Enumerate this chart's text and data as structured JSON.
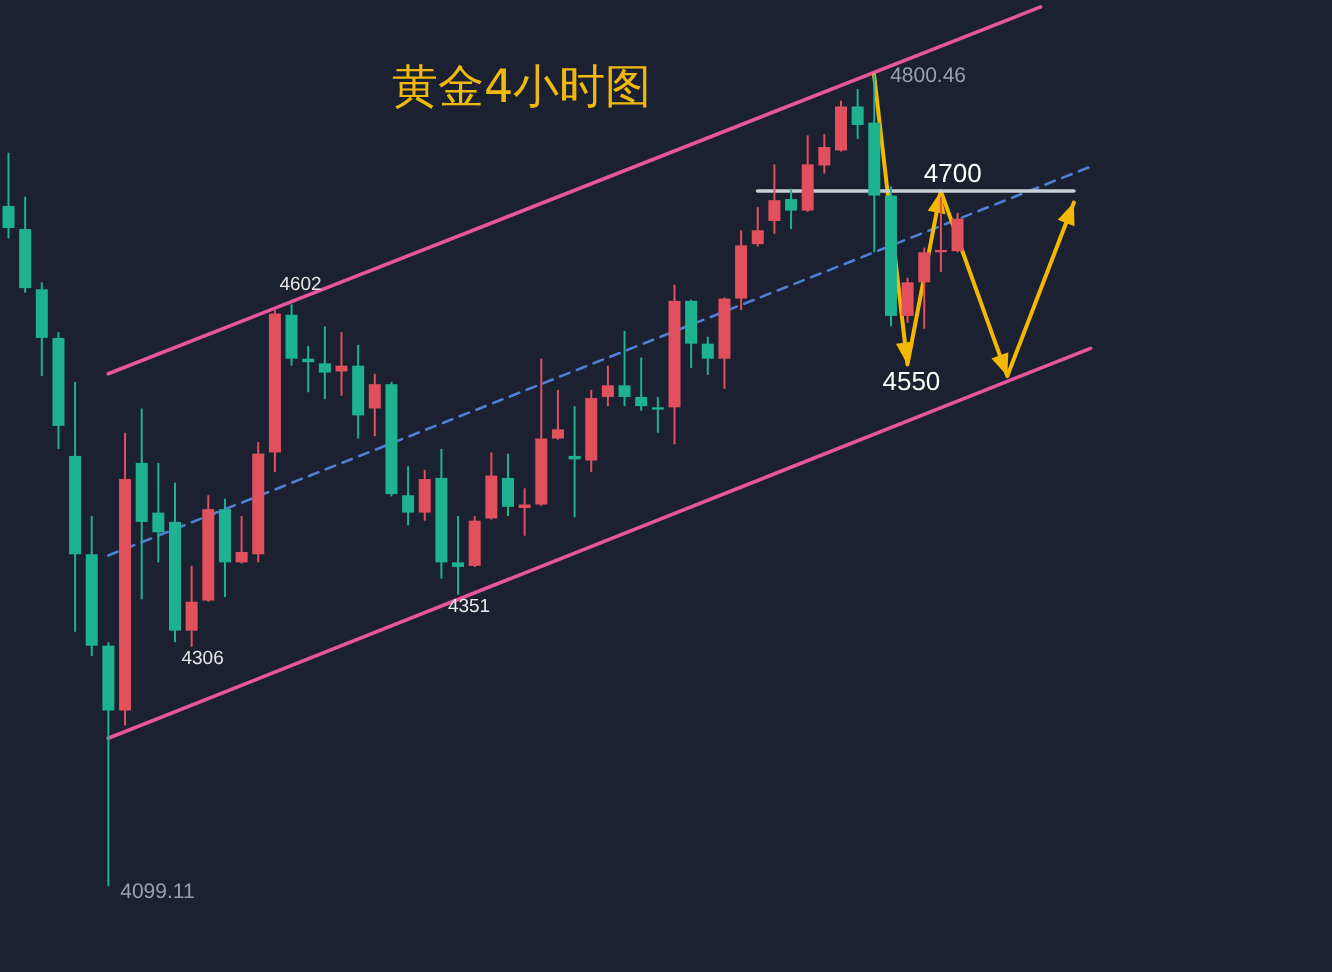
{
  "chart_data": {
    "type": "candlestick",
    "title": "黄金4小时图",
    "categories": [
      null,
      null,
      null,
      null,
      null,
      null,
      null,
      null,
      null,
      null,
      null,
      null,
      null,
      null,
      null,
      null,
      null,
      null,
      null,
      null,
      null,
      null,
      null,
      null,
      null,
      null,
      null,
      null,
      null,
      null,
      null,
      null,
      null,
      null,
      null,
      null,
      null,
      null,
      null,
      null,
      null,
      null,
      null,
      null,
      null,
      null,
      null,
      null,
      null,
      null,
      null,
      null,
      null,
      null,
      null,
      null,
      null,
      null,
      null,
      null,
      null,
      null,
      null,
      null,
      null,
      null,
      null,
      null,
      null,
      null,
      null,
      null,
      null,
      null,
      null,
      null,
      null,
      null,
      null,
      null
    ],
    "ohlc": [
      [
        4687,
        4733,
        4659,
        4668
      ],
      [
        4667,
        4695,
        4612,
        4616
      ],
      [
        4615,
        4621,
        4540,
        4573
      ],
      [
        4573,
        4578,
        4477,
        4497
      ],
      [
        4471,
        4535,
        4319,
        4386
      ],
      [
        4386,
        4419,
        4298,
        4307
      ],
      [
        4307,
        4310,
        4099.11,
        4251
      ],
      [
        4251,
        4491,
        4238,
        4451
      ],
      [
        4465,
        4512,
        4347,
        4414
      ],
      [
        4422,
        4465,
        4379,
        4405
      ],
      [
        4414,
        4448,
        4310,
        4320
      ],
      [
        4320,
        4376,
        4306,
        4345
      ],
      [
        4346,
        4437,
        4345,
        4425
      ],
      [
        4425,
        4434,
        4349,
        4379
      ],
      [
        4379,
        4419,
        4378,
        4388
      ],
      [
        4386,
        4483,
        4379,
        4473
      ],
      [
        4474,
        4597,
        4457,
        4594
      ],
      [
        4593,
        4602,
        4549,
        4555
      ],
      [
        4555,
        4566,
        4526,
        4552
      ],
      [
        4551,
        4583,
        4520,
        4543
      ],
      [
        4544,
        4578,
        4523,
        4549
      ],
      [
        4549,
        4567,
        4486,
        4506
      ],
      [
        4512,
        4542,
        4488,
        4533
      ],
      [
        4533,
        4535,
        4436,
        4438
      ],
      [
        4437,
        4462,
        4411,
        4422
      ],
      [
        4422,
        4459,
        4415,
        4451
      ],
      [
        4452,
        4477,
        4365,
        4379
      ],
      [
        4379,
        4419,
        4351,
        4375
      ],
      [
        4376,
        4419,
        4375,
        4415
      ],
      [
        4417,
        4474,
        4416,
        4454
      ],
      [
        4452,
        4473,
        4419,
        4427
      ],
      [
        4426,
        4443,
        4402,
        4429
      ],
      [
        4429,
        4555,
        4428,
        4486
      ],
      [
        4486,
        4528,
        4485,
        4494
      ],
      [
        4471,
        4514,
        4418,
        4468
      ],
      [
        4467,
        4528,
        4457,
        4521
      ],
      [
        4522,
        4549,
        4514,
        4532
      ],
      [
        4532,
        4579,
        4514,
        4522
      ],
      [
        4522,
        4556,
        4510,
        4514
      ],
      [
        4513,
        4522,
        4491,
        4511
      ],
      [
        4513,
        4619,
        4481,
        4605
      ],
      [
        4605,
        4606,
        4547,
        4568
      ],
      [
        4568,
        4574,
        4541,
        4555
      ],
      [
        4555,
        4608,
        4529,
        4607
      ],
      [
        4607,
        4666,
        4597,
        4653
      ],
      [
        4654,
        4686,
        4652,
        4666
      ],
      [
        4674,
        4723,
        4663,
        4692
      ],
      [
        4693,
        4702,
        4667,
        4683
      ],
      [
        4683,
        4748,
        4682,
        4723
      ],
      [
        4722,
        4749,
        4715,
        4738
      ],
      [
        4735,
        4778,
        4734,
        4773
      ],
      [
        4773,
        4788,
        4745,
        4757
      ],
      [
        4759,
        4800.46,
        4647,
        4696
      ],
      [
        4696,
        4704,
        4583,
        4592
      ],
      [
        4592,
        4625,
        4586,
        4621
      ],
      [
        4621,
        4651,
        4581,
        4647
      ],
      [
        4647,
        4695,
        4630,
        4649
      ],
      [
        4648,
        4681,
        4647,
        4676
      ],
      null,
      null,
      null,
      null,
      null,
      null,
      null,
      null,
      null,
      null,
      null,
      null,
      null,
      null,
      null,
      null,
      null,
      null,
      null,
      null,
      null,
      null
    ],
    "colors": [
      "#1db391",
      "#1db391",
      "#1db391",
      "#1db391",
      "#1db391",
      "#1db391",
      "#1db391",
      "#e2505e",
      "#1db391",
      "#1db391",
      "#1db391",
      "#e2505e",
      "#e2505e",
      "#1db391",
      "#e2505e",
      "#e2505e",
      "#e2505e",
      "#1db391",
      "#1db391",
      "#1db391",
      "#e2505e",
      "#1db391",
      "#e2505e",
      "#1db391",
      "#1db391",
      "#e2505e",
      "#1db391",
      "#1db391",
      "#e2505e",
      "#e2505e",
      "#1db391",
      "#e2505e",
      "#e2505e",
      "#e2505e",
      "#1db391",
      "#e2505e",
      "#e2505e",
      "#1db391",
      "#1db391",
      "#1db391",
      "#e2505e",
      "#1db391",
      "#1db391",
      "#e2505e",
      "#e2505e",
      "#e2505e",
      "#e2505e",
      "#1db391",
      "#e2505e",
      "#e2505e",
      "#e2505e",
      "#1db391",
      "#1db391",
      "#1db391",
      "#e2505e",
      "#e2505e",
      "#e2505e",
      "#e2505e",
      null,
      null,
      null,
      null,
      null,
      null,
      null,
      null,
      null,
      null,
      null,
      null,
      null,
      null,
      null,
      null,
      null,
      null,
      null,
      null,
      null,
      null
    ],
    "value_labels": [
      null,
      null,
      null,
      null,
      null,
      null,
      "4099.11",
      null,
      null,
      null,
      null,
      "4306",
      null,
      null,
      null,
      null,
      null,
      "4602",
      null,
      null,
      null,
      null,
      null,
      null,
      null,
      null,
      null,
      "4351",
      null,
      null,
      null,
      null,
      null,
      null,
      null,
      null,
      null,
      null,
      null,
      null,
      null,
      null,
      null,
      null,
      null,
      null,
      null,
      null,
      null,
      null,
      null,
      null,
      "4800.46",
      null,
      null,
      null,
      null,
      null,
      null,
      null,
      null,
      null,
      null,
      null,
      null,
      null,
      null,
      null,
      null,
      null,
      null,
      null,
      null,
      null,
      null,
      null,
      null,
      null,
      null,
      null
    ],
    "series": [
      {
        "type": "line",
        "color": "#e8559e",
        "values": [
          null,
          null,
          null,
          null,
          null,
          null,
          4542,
          null,
          null,
          null,
          null,
          null,
          null,
          null,
          null,
          null,
          null,
          null,
          null,
          null,
          null,
          null,
          null,
          null,
          null,
          null,
          null,
          null,
          null,
          null,
          null,
          null,
          null,
          null,
          null,
          null,
          null,
          null,
          null,
          null,
          null,
          null,
          null,
          null,
          null,
          null,
          null,
          null,
          null,
          null,
          null,
          null,
          null,
          null,
          null,
          null,
          null,
          null,
          null,
          null,
          null,
          null,
          4859,
          null,
          null,
          null,
          null,
          null,
          null,
          null,
          null,
          null,
          null,
          null,
          null,
          null,
          null,
          null,
          null,
          null
        ]
      },
      {
        "type": "line",
        "color": "#e8559e",
        "values": [
          null,
          null,
          null,
          null,
          null,
          null,
          4227,
          null,
          null,
          null,
          null,
          null,
          null,
          null,
          null,
          null,
          null,
          null,
          null,
          null,
          null,
          null,
          null,
          null,
          null,
          null,
          null,
          null,
          null,
          null,
          null,
          null,
          null,
          null,
          null,
          null,
          null,
          null,
          null,
          null,
          null,
          null,
          null,
          null,
          null,
          null,
          null,
          null,
          null,
          null,
          null,
          null,
          null,
          null,
          null,
          null,
          null,
          null,
          null,
          null,
          null,
          null,
          null,
          null,
          null,
          4564,
          null,
          null,
          null,
          null,
          null,
          null,
          null,
          null,
          null,
          null,
          null,
          null,
          null,
          null
        ]
      },
      {
        "type": "line",
        "color": "#4f7fd6",
        "line_style": "dashed",
        "values": [
          null,
          null,
          null,
          null,
          null,
          null,
          4385,
          null,
          null,
          null,
          null,
          null,
          null,
          null,
          null,
          null,
          null,
          null,
          null,
          null,
          null,
          null,
          null,
          null,
          null,
          null,
          null,
          null,
          null,
          null,
          null,
          null,
          null,
          null,
          null,
          null,
          null,
          null,
          null,
          null,
          null,
          null,
          null,
          null,
          null,
          null,
          null,
          null,
          null,
          null,
          null,
          null,
          null,
          null,
          null,
          null,
          null,
          null,
          null,
          null,
          null,
          null,
          null,
          null,
          null,
          4721,
          null,
          null,
          null,
          null,
          null,
          null,
          null,
          null,
          null,
          null,
          null,
          null,
          null,
          null
        ]
      },
      {
        "type": "line",
        "color": "#f5b800",
        "values": [
          null,
          null,
          null,
          null,
          null,
          null,
          null,
          null,
          null,
          null,
          null,
          null,
          null,
          null,
          null,
          null,
          null,
          null,
          null,
          null,
          null,
          null,
          null,
          null,
          null,
          null,
          null,
          null,
          null,
          null,
          null,
          null,
          null,
          null,
          null,
          null,
          null,
          null,
          null,
          null,
          null,
          null,
          null,
          null,
          null,
          null,
          null,
          null,
          null,
          null,
          null,
          null,
          4800,
          null,
          4550,
          null,
          4700,
          null,
          null,
          null,
          4540,
          null,
          null,
          null,
          4690,
          null,
          null,
          null,
          null,
          null,
          null,
          null,
          null,
          null,
          null,
          null,
          null,
          null,
          null,
          null
        ]
      },
      {
        "type": "line",
        "color": "#c9cdd4",
        "values": [
          null,
          null,
          null,
          null,
          null,
          null,
          null,
          null,
          null,
          null,
          null,
          null,
          null,
          null,
          null,
          null,
          null,
          null,
          null,
          null,
          null,
          null,
          null,
          null,
          null,
          null,
          null,
          null,
          null,
          null,
          null,
          null,
          null,
          null,
          null,
          null,
          null,
          null,
          null,
          null,
          null,
          null,
          null,
          null,
          null,
          4700,
          null,
          null,
          null,
          null,
          null,
          null,
          null,
          null,
          null,
          null,
          null,
          null,
          null,
          null,
          null,
          null,
          null,
          null,
          4700,
          null,
          null,
          null,
          null,
          null,
          null,
          null,
          null,
          null,
          null,
          null,
          null,
          null,
          null,
          null
        ]
      }
    ],
    "ylim": [
      4025,
      4865
    ],
    "tick_labels": false,
    "annotations": [
      {
        "text": "4700",
        "y": 4700
      },
      {
        "text": "4550",
        "y": 4550
      }
    ]
  }
}
